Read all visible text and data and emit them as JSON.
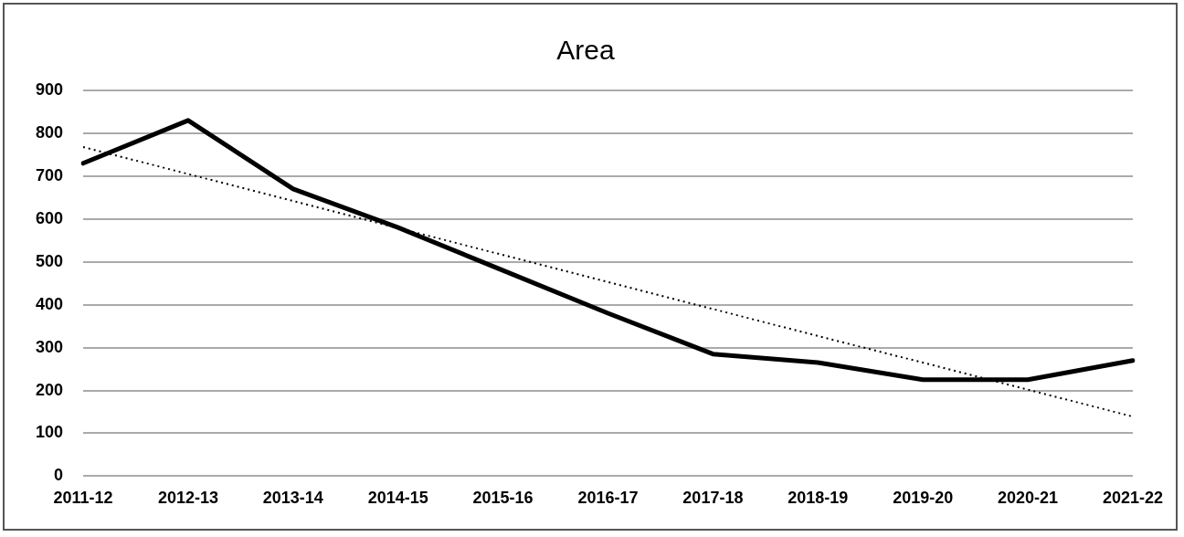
{
  "chart_data": {
    "type": "line",
    "title": "Area",
    "categories": [
      "2011-12",
      "2012-13",
      "2013-14",
      "2014-15",
      "2015-16",
      "2016-17",
      "2017-18",
      "2018-19",
      "2019-20",
      "2020-21",
      "2021-22"
    ],
    "series": [
      {
        "color": "#000000",
        "values": [
          730,
          830,
          670,
          580,
          480,
          380,
          285,
          265,
          225,
          225,
          270
        ]
      },
      {
        "color": "#000000",
        "line_style": "dotted",
        "values": [
          768,
          705,
          642,
          579,
          516,
          453,
          390,
          327,
          265,
          202,
          139
        ]
      }
    ],
    "ylim": [
      0,
      900
    ],
    "yticks": [
      0,
      100,
      200,
      300,
      400,
      500,
      600,
      700,
      800,
      900
    ],
    "grid": "y",
    "marker": "none",
    "legend": false
  }
}
